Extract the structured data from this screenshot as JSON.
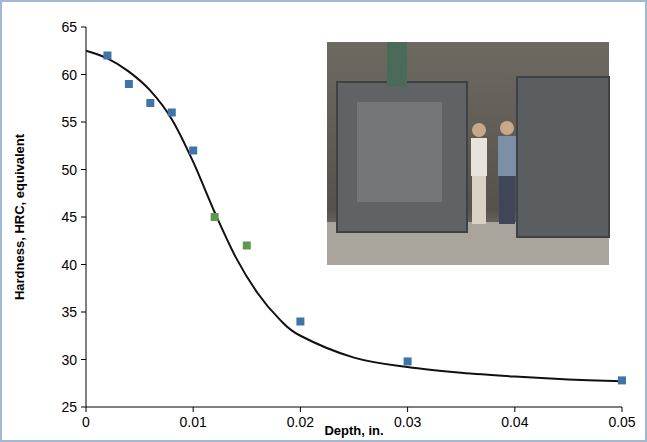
{
  "chart_data": {
    "type": "scatter",
    "x_label": "Depth, in.",
    "y_label": "Hardness, HRC, equivalent",
    "xlim": [
      0,
      0.05
    ],
    "xticks": [
      0,
      0.01,
      0.02,
      0.03,
      0.04,
      0.05
    ],
    "ylim": [
      25,
      65
    ],
    "yticks": [
      25,
      30,
      35,
      40,
      45,
      50,
      55,
      60,
      65
    ],
    "grid": false,
    "series": [
      {
        "type": "scatter",
        "color": "#3f74aa",
        "marker": "square",
        "x": [
          0.002,
          0.004,
          0.006,
          0.008,
          0.01,
          0.02,
          0.03,
          0.05
        ],
        "values": [
          62,
          59,
          57,
          56,
          52,
          34,
          29.8,
          27.8
        ]
      },
      {
        "type": "scatter",
        "color": "#5b9a4c",
        "marker": "square",
        "x": [
          0.012,
          0.015
        ],
        "values": [
          45,
          42
        ]
      },
      {
        "type": "line",
        "color": "#111111",
        "marker": "none",
        "line_style": "solid",
        "x": [
          0,
          0.002,
          0.004,
          0.006,
          0.008,
          0.01,
          0.012,
          0.014,
          0.016,
          0.018,
          0.02,
          0.025,
          0.03,
          0.035,
          0.04,
          0.045,
          0.05
        ],
        "values": [
          62.5,
          61.7,
          60.3,
          58.3,
          55.3,
          50.8,
          45.5,
          40.7,
          37,
          34.3,
          32.5,
          30.2,
          29.2,
          28.6,
          28.2,
          27.9,
          27.7
        ]
      }
    ]
  }
}
